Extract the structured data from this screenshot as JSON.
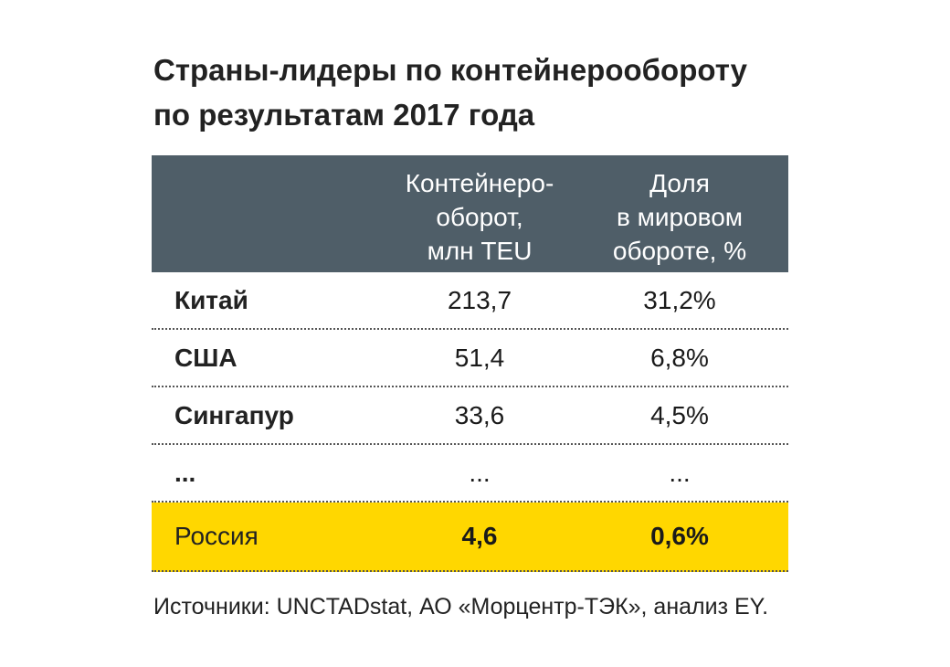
{
  "title": {
    "line1": "Страны-лидеры по контейнерообороту",
    "line2": "по результатам 2017 года"
  },
  "chart_data": {
    "type": "table",
    "columns": [
      {
        "lines": [
          "",
          "",
          ""
        ]
      },
      {
        "lines": [
          "Контейнеро-",
          "оборот,",
          "млн TEU"
        ]
      },
      {
        "lines": [
          "Доля",
          "в мировом",
          "обороте, %"
        ]
      }
    ],
    "rows": [
      {
        "country": "Китай",
        "teu": "213,7",
        "share": "31,2%"
      },
      {
        "country": "США",
        "teu": "51,4",
        "share": "6,8%"
      },
      {
        "country": "Сингапур",
        "teu": "33,6",
        "share": "4,5%"
      },
      {
        "country": "...",
        "teu": "...",
        "share": "..."
      },
      {
        "country": "Россия",
        "teu": "4,6",
        "share": "0,6%"
      }
    ],
    "highlight_row": "Россия",
    "colors": {
      "header_bg": "#4f5e68",
      "highlight_bg": "#ffd700"
    }
  },
  "source": "Источники: UNCTADstat, АО «Морцентр-ТЭК», анализ EY."
}
